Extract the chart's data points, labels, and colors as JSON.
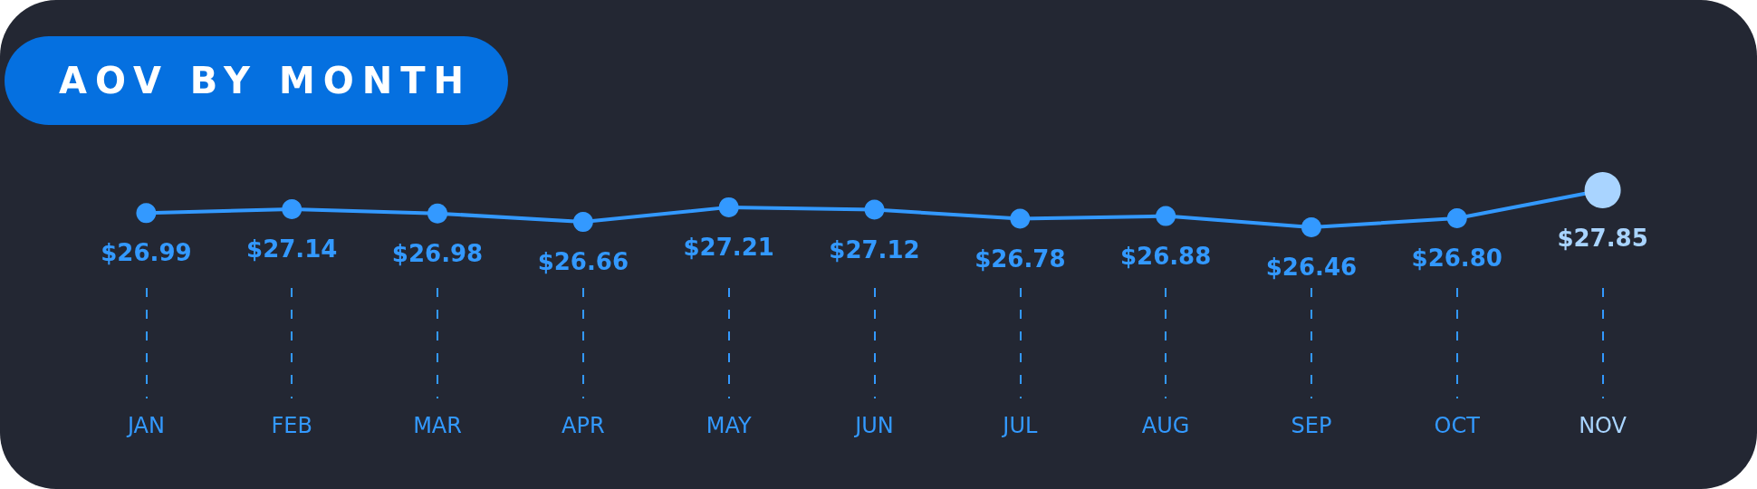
{
  "chart_data": {
    "type": "line",
    "title": "AOV BY MONTH",
    "categories": [
      "JAN",
      "FEB",
      "MAR",
      "APR",
      "MAY",
      "JUN",
      "JUL",
      "AUG",
      "SEP",
      "OCT",
      "NOV"
    ],
    "values": [
      26.99,
      27.14,
      26.98,
      26.66,
      27.21,
      27.12,
      26.78,
      26.88,
      26.46,
      26.8,
      27.85
    ],
    "value_labels": [
      "$26.99",
      "$27.14",
      "$26.98",
      "$26.66",
      "$27.21",
      "$27.12",
      "$26.78",
      "$26.88",
      "$26.46",
      "$26.80",
      "$27.85"
    ],
    "color": "#3399ff",
    "colors": [
      "#3399ff",
      "#3399ff",
      "#3399ff",
      "#3399ff",
      "#3399ff",
      "#3399ff",
      "#3399ff",
      "#3399ff",
      "#3399ff",
      "#3399ff",
      "#a9d4ff"
    ],
    "marker": "circle",
    "line_style": "solid",
    "grid": "x"
  }
}
